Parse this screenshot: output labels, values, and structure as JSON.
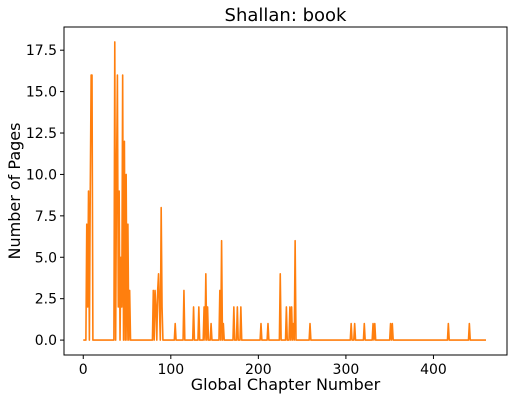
{
  "chart_data": {
    "type": "line",
    "title": "Shallan: book",
    "xlabel": "Global Chapter Number",
    "ylabel": "Number of Pages",
    "xlim": [
      -22,
      484
    ],
    "ylim": [
      -0.9,
      18.9
    ],
    "xticks": [
      0,
      100,
      200,
      300,
      400
    ],
    "xtick_labels": [
      "0",
      "100",
      "200",
      "300",
      "400"
    ],
    "yticks": [
      0,
      2.5,
      5,
      7.5,
      10,
      12.5,
      15,
      17.5
    ],
    "ytick_labels": [
      "0.0",
      "2.5",
      "5.0",
      "7.5",
      "10.0",
      "12.5",
      "15.0",
      "17.5"
    ],
    "grid": false,
    "legend": "none",
    "series": [
      {
        "color": "#ff7f0e",
        "x": [
          0,
          3,
          4,
          5,
          6,
          7,
          8,
          9,
          10,
          11,
          12,
          35,
          36,
          37,
          38,
          39,
          40,
          41,
          42,
          43,
          44,
          45,
          46,
          47,
          48,
          49,
          50,
          51,
          52,
          53,
          54,
          55,
          56,
          57,
          58,
          59,
          79,
          80,
          81,
          82,
          83,
          84,
          85,
          86,
          87,
          88,
          89,
          90,
          91,
          92,
          93,
          94,
          95,
          104,
          105,
          106,
          114,
          115,
          116,
          125,
          126,
          127,
          131,
          132,
          133,
          137,
          138,
          139,
          140,
          141,
          142,
          143,
          145,
          146,
          147,
          148,
          155,
          156,
          157,
          158,
          159,
          160,
          161,
          162,
          171,
          172,
          173,
          175,
          176,
          177,
          179,
          180,
          181,
          202,
          203,
          204,
          210,
          211,
          212,
          224,
          225,
          226,
          231,
          232,
          233,
          235,
          236,
          237,
          238,
          239,
          240,
          241,
          242,
          243,
          244,
          245,
          246,
          258,
          259,
          260,
          305,
          306,
          307,
          309,
          310,
          311,
          320,
          321,
          322,
          330,
          331,
          332,
          333,
          334,
          350,
          351,
          352,
          353,
          354,
          416,
          417,
          418,
          440,
          441,
          442,
          460
        ],
        "y": [
          0,
          0,
          7,
          2,
          9,
          0,
          9,
          16,
          16,
          0,
          0,
          0,
          18,
          0,
          10,
          16,
          2,
          9,
          0,
          5,
          2,
          16,
          0,
          12,
          0,
          10,
          0,
          7,
          0,
          3,
          0,
          0,
          0,
          0,
          0,
          0,
          0,
          3,
          0,
          3,
          2,
          0,
          3,
          4,
          2,
          0,
          8,
          2,
          0,
          0,
          0,
          0,
          0,
          0,
          1,
          0,
          0,
          3,
          0,
          0,
          2,
          0,
          0,
          2,
          0,
          0,
          2,
          0,
          4,
          0,
          2,
          0,
          0,
          1,
          0,
          0,
          0,
          3,
          0,
          6,
          0,
          1,
          0,
          0,
          0,
          2,
          0,
          0,
          2,
          0,
          0,
          2,
          0,
          0,
          1,
          0,
          0,
          1,
          0,
          0,
          4,
          0,
          0,
          2,
          0,
          0,
          2,
          0,
          2,
          0,
          1,
          0,
          6,
          0,
          0,
          0,
          0,
          0,
          1,
          0,
          0,
          1,
          0,
          0,
          1,
          0,
          0,
          1,
          0,
          0,
          1,
          0,
          1,
          0,
          0,
          1,
          0,
          1,
          0,
          0,
          1,
          0,
          0,
          1,
          0,
          0
        ]
      }
    ]
  }
}
